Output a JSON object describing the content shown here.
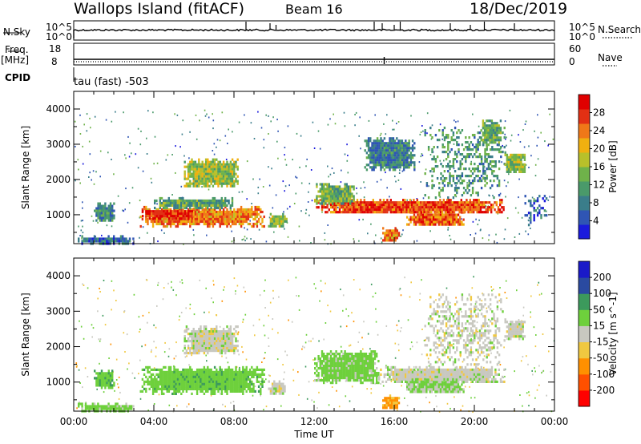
{
  "header": {
    "site": "Wallops Island (fitACF)",
    "beam": "Beam 16",
    "date": "18/Dec/2019"
  },
  "strip": {
    "nsky_label": "N.Sky",
    "nsky_ticks": [
      "10^5",
      "10^0"
    ],
    "nsearch_label": "N.Search",
    "nsearch_ticks": [
      "10^5",
      "10^0"
    ],
    "freq_label": "Freq.",
    "freq_unit": "[MHz]",
    "freq_ticks": [
      "18",
      "8"
    ],
    "nave_label": "Nave",
    "nave_ticks": [
      "60",
      "0"
    ],
    "cpid_label": "CPID",
    "cpid_text": "tau (fast) -503"
  },
  "colors": {
    "power": [
      "#1a1adc",
      "#2f55b4",
      "#3a7d8a",
      "#4a9a6a",
      "#6fb24a",
      "#b8c02a",
      "#f0b010",
      "#f07818",
      "#e23014",
      "#e00000"
    ],
    "velocity": [
      "#ff0000",
      "#ff5000",
      "#ff9000",
      "#f0c840",
      "#c8c8c0",
      "#6ed03c",
      "#3c9a5c",
      "#2a4aa0",
      "#1a1ac8"
    ],
    "ground_scatter": "#bcbcb4"
  },
  "chart_data": [
    {
      "type": "heatmap",
      "title": "Power",
      "ylabel": "Slant Range [km]",
      "xlabel": "Time UT",
      "x_ticks": [
        "00:00",
        "04:00",
        "08:00",
        "12:00",
        "16:00",
        "20:00",
        "00:00"
      ],
      "xlim_hours": [
        0,
        24
      ],
      "ylim_km": [
        180,
        4500
      ],
      "y_ticks": [
        1000,
        2000,
        3000,
        4000
      ],
      "colorbar": {
        "label": "Power [dB]",
        "ticks": [
          "4",
          "8",
          "12",
          "16",
          "20",
          "24",
          "28"
        ],
        "range": [
          0,
          30
        ]
      },
      "regions": [
        {
          "t0": 1.0,
          "t1": 2.0,
          "r0": 850,
          "r1": 1350,
          "v": 9
        },
        {
          "t0": 3.3,
          "t1": 9.5,
          "r0": 700,
          "r1": 1250,
          "v": 22
        },
        {
          "t0": 3.4,
          "t1": 6.0,
          "r0": 900,
          "r1": 1200,
          "v": 27
        },
        {
          "t0": 4.0,
          "t1": 8.0,
          "r0": 1200,
          "r1": 1500,
          "v": 11
        },
        {
          "t0": 5.5,
          "t1": 8.2,
          "r0": 1800,
          "r1": 2600,
          "v": 15
        },
        {
          "t0": 9.7,
          "t1": 10.6,
          "r0": 700,
          "r1": 1050,
          "v": 14
        },
        {
          "t0": 12.0,
          "t1": 21.5,
          "r0": 1050,
          "r1": 1450,
          "v": 25
        },
        {
          "t0": 12.0,
          "t1": 14.0,
          "r0": 1300,
          "r1": 1900,
          "v": 13
        },
        {
          "t0": 16.6,
          "t1": 19.5,
          "r0": 700,
          "r1": 1100,
          "v": 23
        },
        {
          "t0": 14.5,
          "t1": 17.0,
          "r0": 2300,
          "r1": 3200,
          "v": 8
        },
        {
          "t0": 17.5,
          "t1": 21.5,
          "r0": 1500,
          "r1": 3500,
          "v": 10
        },
        {
          "t0": 20.3,
          "t1": 21.3,
          "r0": 3000,
          "r1": 3700,
          "v": 12
        },
        {
          "t0": 21.5,
          "t1": 22.5,
          "r0": 2200,
          "r1": 2800,
          "v": 14
        },
        {
          "t0": 0.2,
          "t1": 3.0,
          "r0": 200,
          "r1": 420,
          "v": 6
        },
        {
          "t0": 15.4,
          "t1": 16.2,
          "r0": 250,
          "r1": 650,
          "v": 22
        },
        {
          "t0": 22.5,
          "t1": 23.6,
          "r0": 700,
          "r1": 1700,
          "v": 5
        }
      ]
    },
    {
      "type": "heatmap",
      "title": "Velocity",
      "ylabel": "Slant Range [km]",
      "xlabel": "Time UT",
      "x_ticks": [
        "00:00",
        "04:00",
        "08:00",
        "12:00",
        "16:00",
        "20:00",
        "00:00"
      ],
      "xlim_hours": [
        0,
        24
      ],
      "ylim_km": [
        180,
        4500
      ],
      "y_ticks": [
        1000,
        2000,
        3000,
        4000
      ],
      "colorbar": {
        "label": "Velocity [m s^-1]",
        "ticks": [
          "-200",
          "-100",
          "-50",
          "-15",
          "15",
          "50",
          "100",
          "200"
        ],
        "range": [
          -250,
          250
        ]
      },
      "regions": [
        {
          "t0": 1.0,
          "t1": 2.0,
          "r0": 850,
          "r1": 1350,
          "v": 40
        },
        {
          "t0": 3.3,
          "t1": 9.5,
          "r0": 700,
          "r1": 1450,
          "v": 35
        },
        {
          "t0": 5.5,
          "t1": 8.2,
          "r0": 1800,
          "r1": 2600,
          "v": 0
        },
        {
          "t0": 9.7,
          "t1": 10.6,
          "r0": 700,
          "r1": 1050,
          "v": 0
        },
        {
          "t0": 12.0,
          "t1": 15.2,
          "r0": 1000,
          "r1": 1900,
          "v": 30
        },
        {
          "t0": 15.2,
          "t1": 21.5,
          "r0": 1000,
          "r1": 1450,
          "v": 0
        },
        {
          "t0": 16.6,
          "t1": 19.5,
          "r0": 700,
          "r1": 1100,
          "v": 20
        },
        {
          "t0": 17.5,
          "t1": 21.5,
          "r0": 1500,
          "r1": 3500,
          "v": 0
        },
        {
          "t0": 21.5,
          "t1": 22.5,
          "r0": 2200,
          "r1": 2800,
          "v": 0
        },
        {
          "t0": 15.4,
          "t1": 16.2,
          "r0": 250,
          "r1": 650,
          "v": -60
        },
        {
          "t0": 0.2,
          "t1": 3.0,
          "r0": 200,
          "r1": 420,
          "v": 30
        }
      ]
    }
  ]
}
